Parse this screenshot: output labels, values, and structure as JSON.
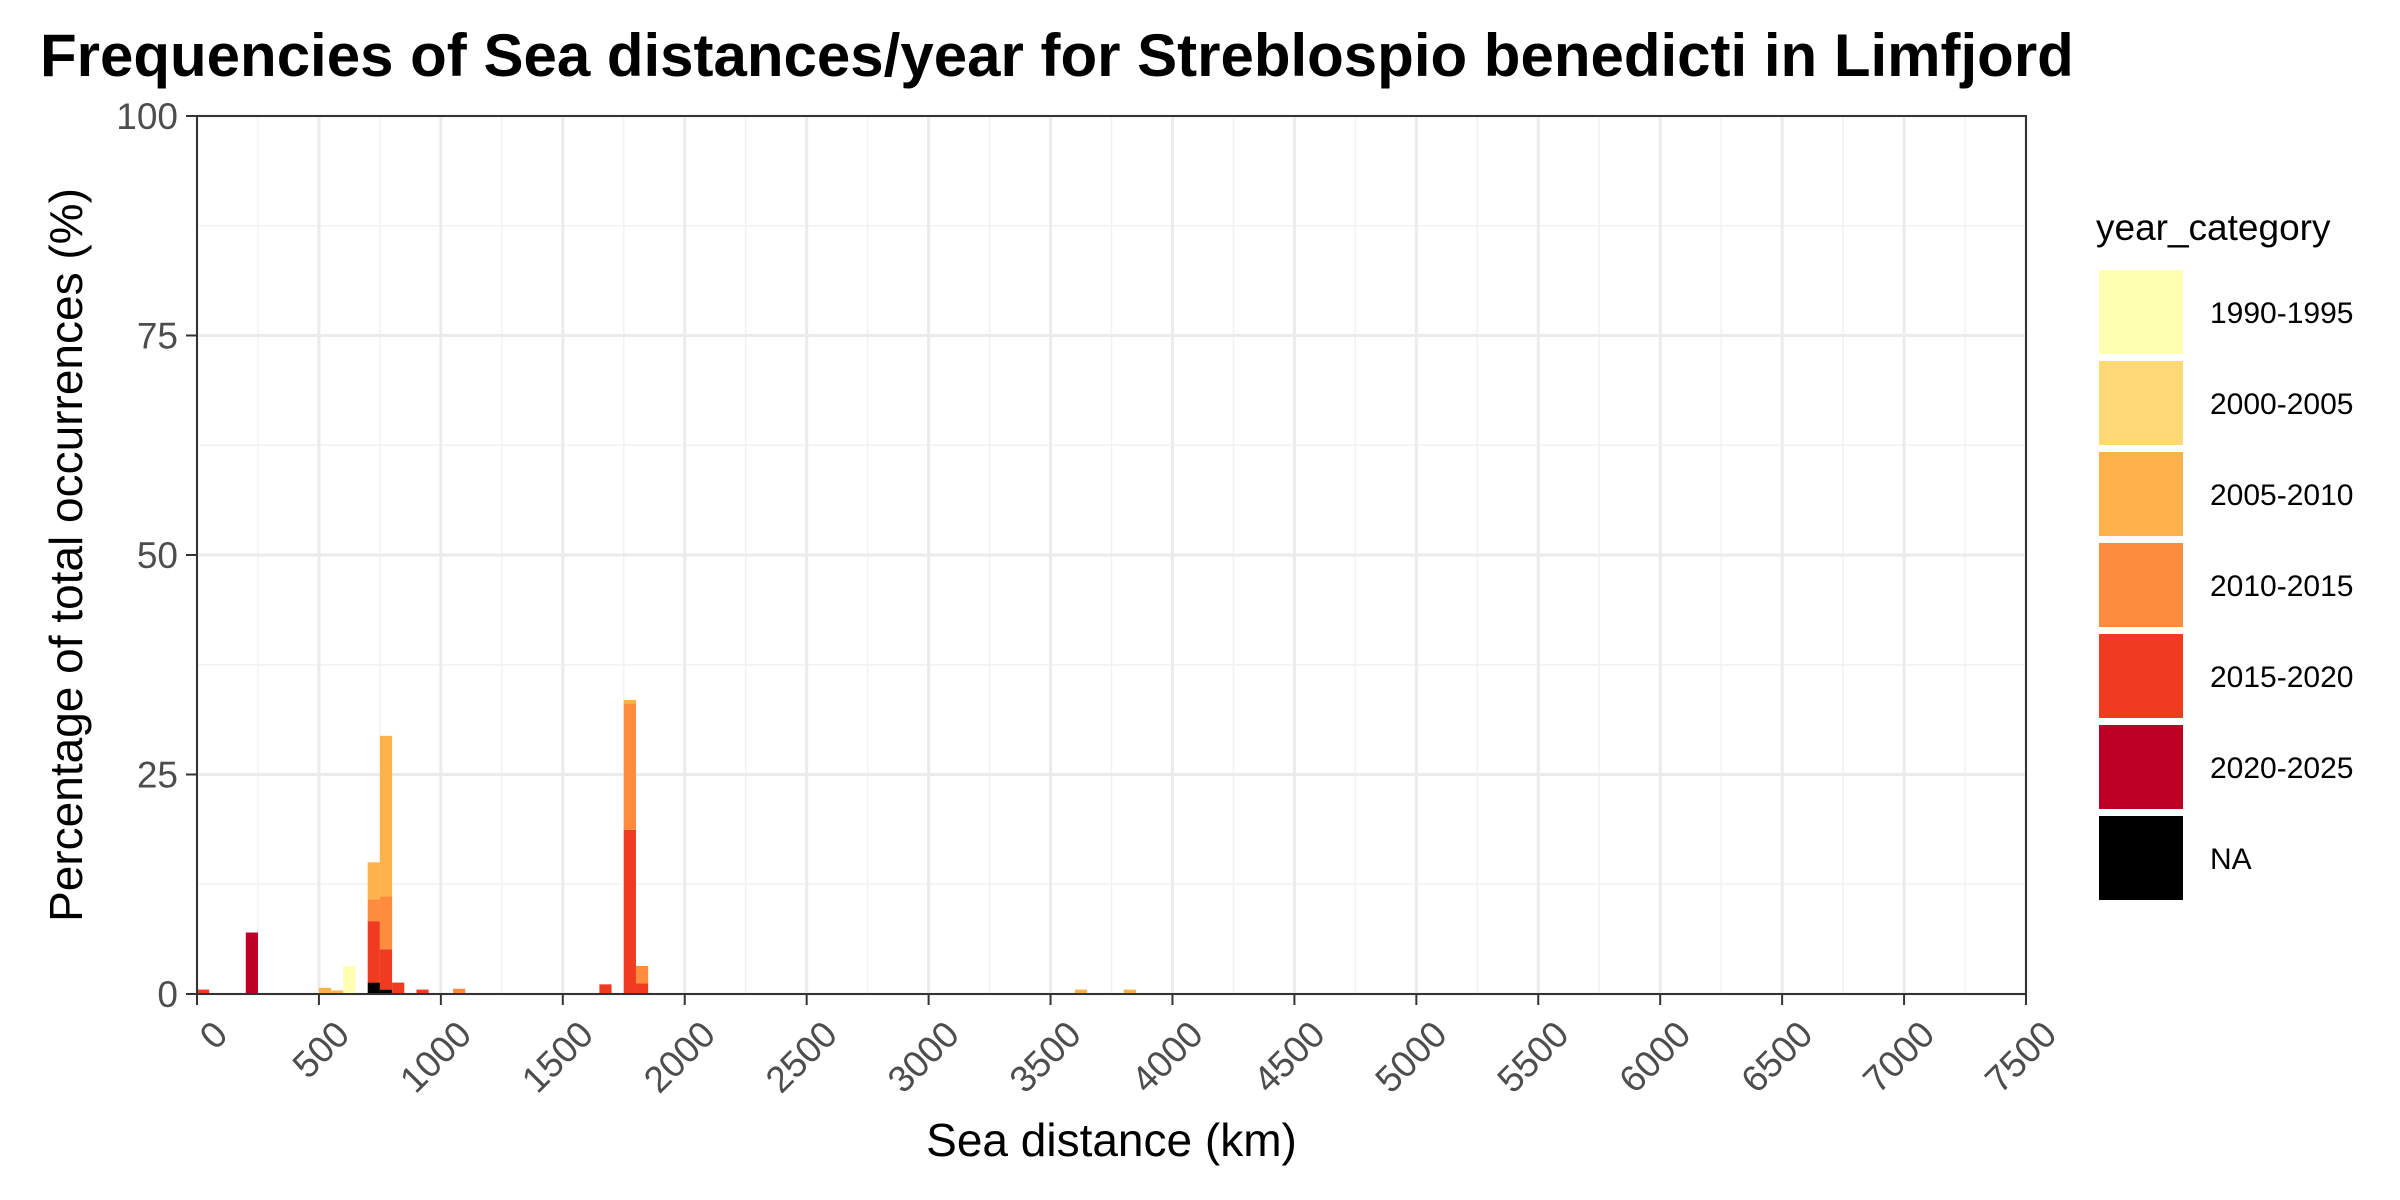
{
  "chart_data": {
    "type": "bar",
    "stacked": true,
    "title": "Frequencies of Sea distances/year for Streblospio benedicti in Limfjord",
    "xlabel": "Sea distance (km)",
    "ylabel": "Percentage of total occurrences (%)",
    "xlim": [
      0,
      7500
    ],
    "ylim": [
      0,
      100
    ],
    "x_ticks": [
      0,
      500,
      1000,
      1500,
      2000,
      2500,
      3000,
      3500,
      4000,
      4500,
      5000,
      5500,
      6000,
      6500,
      7000,
      7500
    ],
    "x_tick_labels": [
      "0",
      "500",
      "1000",
      "1500",
      "2000",
      "2500",
      "3000",
      "3500",
      "4000",
      "4500",
      "5000",
      "5500",
      "6000",
      "6500",
      "7000",
      "7500"
    ],
    "y_ticks": [
      0,
      25,
      50,
      75,
      100
    ],
    "y_tick_labels": [
      "0",
      "25",
      "50",
      "75",
      "100"
    ],
    "bin_width": 50,
    "grid": true,
    "legend": {
      "title": "year_category",
      "position": "right",
      "entries": [
        {
          "label": "1990-1995",
          "color": "#FFFFB2"
        },
        {
          "label": "2000-2005",
          "color": "#FED976"
        },
        {
          "label": "2005-2010",
          "color": "#FEB24C"
        },
        {
          "label": "2010-2015",
          "color": "#FD8D3C"
        },
        {
          "label": "2015-2020",
          "color": "#F03B20"
        },
        {
          "label": "2020-2025",
          "color": "#BD0026"
        },
        {
          "label": "NA",
          "color": "#000000"
        }
      ]
    },
    "stack_order": [
      "NA",
      "2020-2025",
      "2015-2020",
      "2010-2015",
      "2005-2010",
      "2000-2005",
      "1990-1995"
    ],
    "bins": [
      {
        "x": 25,
        "values": {
          "2015-2020": 0.5
        }
      },
      {
        "x": 225,
        "values": {
          "2020-2025": 7.0
        }
      },
      {
        "x": 525,
        "values": {
          "2005-2010": 0.7
        }
      },
      {
        "x": 575,
        "values": {
          "2005-2010": 0.4
        }
      },
      {
        "x": 625,
        "values": {
          "1990-1995": 3.2
        }
      },
      {
        "x": 725,
        "values": {
          "NA": 1.3,
          "2015-2020": 7.0,
          "2010-2015": 2.5,
          "2005-2010": 4.2
        }
      },
      {
        "x": 775,
        "values": {
          "NA": 0.5,
          "2015-2020": 4.6,
          "2010-2015": 6.0,
          "2005-2010": 18.3
        }
      },
      {
        "x": 825,
        "values": {
          "2015-2020": 1.3
        }
      },
      {
        "x": 925,
        "values": {
          "2015-2020": 0.5
        }
      },
      {
        "x": 1075,
        "values": {
          "2010-2015": 0.6
        }
      },
      {
        "x": 1675,
        "values": {
          "2015-2020": 1.1
        }
      },
      {
        "x": 1775,
        "values": {
          "2015-2020": 18.7,
          "2010-2015": 14.4,
          "2005-2010": 0.4
        }
      },
      {
        "x": 1825,
        "values": {
          "2015-2020": 1.2,
          "2010-2015": 2.0
        }
      },
      {
        "x": 3625,
        "values": {
          "2005-2010": 0.5
        }
      },
      {
        "x": 3825,
        "values": {
          "2005-2010": 0.5
        }
      }
    ]
  }
}
